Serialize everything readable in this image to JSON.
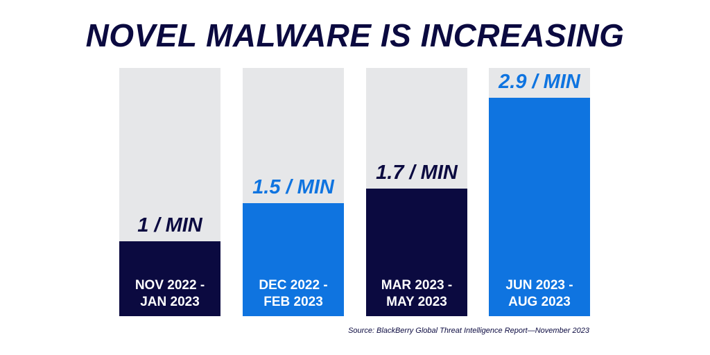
{
  "colors": {
    "dark_navy": "#0b0a40",
    "bright_blue": "#0f74e0",
    "track_gray": "#e6e7e9"
  },
  "chart_data": {
    "type": "bar",
    "title": "NOVEL MALWARE IS INCREASING",
    "categories": [
      [
        "NOV 2022 -",
        "JAN 2023"
      ],
      [
        "DEC 2022 -",
        "FEB 2023"
      ],
      [
        "MAR 2023 -",
        "MAY 2023"
      ],
      [
        "JUN 2023 -",
        "AUG 2023"
      ]
    ],
    "values": [
      1,
      1.5,
      1.7,
      2.9
    ],
    "value_labels": [
      "1 / MIN",
      "1.5 / MIN",
      "1.7 / MIN",
      "2.9 / MIN"
    ],
    "unit": "/ MIN",
    "bar_colors": [
      "#0b0a40",
      "#0f74e0",
      "#0b0a40",
      "#0f74e0"
    ],
    "ylim": [
      0,
      3.3
    ],
    "xlabel": "",
    "ylabel": "",
    "grid": false,
    "legend": "none",
    "source": "Source: BlackBerry Global Threat Intelligence Report—November 2023"
  }
}
